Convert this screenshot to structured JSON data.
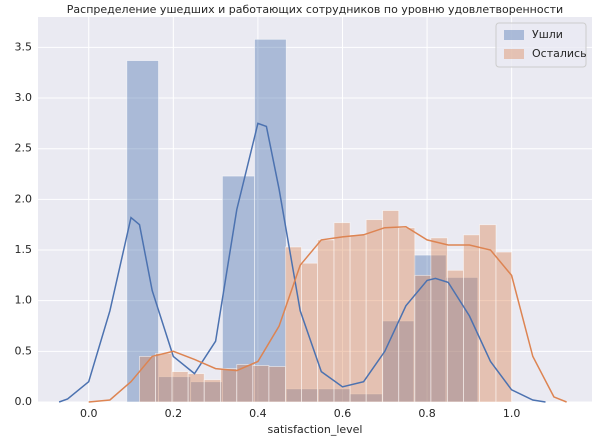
{
  "chart_data": {
    "type": "hist",
    "title": "Распределение ушедших и работающих сотрудников по уровню удовлетворенности",
    "xlabel": "satisfaction_level",
    "xlim": [
      -0.12,
      1.19
    ],
    "ylim": [
      0,
      3.8
    ],
    "xticks": [
      {
        "value": 0,
        "label": "0.0"
      },
      {
        "value": 0.2,
        "label": "0.2"
      },
      {
        "value": 0.4,
        "label": "0.4"
      },
      {
        "value": 0.6,
        "label": "0.6"
      },
      {
        "value": 0.8,
        "label": "0.8"
      },
      {
        "value": 1,
        "label": "1.0"
      }
    ],
    "yticks": [
      {
        "value": 0,
        "label": "0.0"
      },
      {
        "value": 0.5,
        "label": "0.5"
      },
      {
        "value": 1,
        "label": "1.0"
      },
      {
        "value": 1.5,
        "label": "1.5"
      },
      {
        "value": 2,
        "label": "2.0"
      },
      {
        "value": 2.5,
        "label": "2.5"
      },
      {
        "value": 3,
        "label": "3.0"
      },
      {
        "value": 3.5,
        "label": "3.5"
      }
    ],
    "grid": true,
    "legend": "upper right",
    "series": [
      {
        "name": "Ушли",
        "color": "#4c72b0",
        "bins": [
          0.09,
          0.165,
          0.241,
          0.316,
          0.392,
          0.467,
          0.543,
          0.618,
          0.694,
          0.769,
          0.845,
          0.92
        ],
        "values": [
          3.37,
          0.25,
          0.2,
          2.23,
          3.58,
          0.13,
          0.13,
          0.08,
          0.8,
          1.45,
          1.23
        ],
        "kde_x": [
          -0.07,
          -0.05,
          0.0,
          0.05,
          0.1,
          0.12,
          0.15,
          0.2,
          0.25,
          0.3,
          0.35,
          0.4,
          0.42,
          0.45,
          0.5,
          0.55,
          0.6,
          0.65,
          0.7,
          0.75,
          0.8,
          0.82,
          0.85,
          0.9,
          0.95,
          1.0,
          1.05,
          1.08
        ],
        "kde_y": [
          0,
          0.03,
          0.2,
          0.9,
          1.82,
          1.75,
          1.1,
          0.45,
          0.28,
          0.6,
          1.9,
          2.75,
          2.72,
          2.1,
          0.9,
          0.3,
          0.15,
          0.2,
          0.5,
          0.95,
          1.2,
          1.22,
          1.18,
          0.85,
          0.4,
          0.12,
          0.02,
          0
        ]
      },
      {
        "name": "Остались",
        "color": "#dd8452",
        "bins": [
          0.12,
          0.158,
          0.197,
          0.235,
          0.273,
          0.312,
          0.35,
          0.388,
          0.426,
          0.465,
          0.503,
          0.541,
          0.58,
          0.618,
          0.656,
          0.695,
          0.733,
          0.771,
          0.809,
          0.848,
          0.886,
          0.924,
          0.963,
          1.0
        ],
        "values": [
          0.45,
          0.48,
          0.3,
          0.28,
          0.22,
          0.33,
          0.37,
          0.36,
          0.35,
          1.53,
          1.37,
          1.6,
          1.77,
          1.65,
          1.8,
          1.89,
          1.72,
          1.25,
          1.62,
          1.3,
          1.65,
          1.75,
          1.48
        ],
        "kde_x": [
          0.0,
          0.05,
          0.1,
          0.15,
          0.2,
          0.25,
          0.3,
          0.35,
          0.4,
          0.45,
          0.5,
          0.55,
          0.6,
          0.65,
          0.7,
          0.75,
          0.8,
          0.85,
          0.9,
          0.95,
          1.0,
          1.05,
          1.1,
          1.13
        ],
        "kde_y": [
          0,
          0.02,
          0.2,
          0.45,
          0.5,
          0.42,
          0.33,
          0.31,
          0.4,
          0.75,
          1.35,
          1.6,
          1.63,
          1.65,
          1.72,
          1.73,
          1.6,
          1.55,
          1.55,
          1.5,
          1.25,
          0.45,
          0.05,
          0
        ]
      }
    ]
  }
}
